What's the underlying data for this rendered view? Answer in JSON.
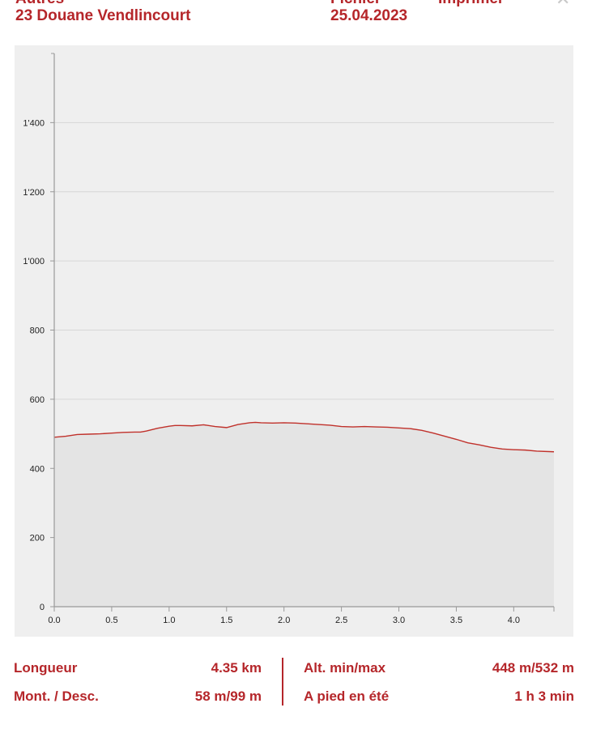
{
  "header": {
    "category": "Autres",
    "route_name": "23 Douane Vendlincourt",
    "file_label": "Fichier",
    "date": "25.04.2023",
    "print_label": "Imprimer",
    "close_symbol": "✕"
  },
  "chart_data": {
    "type": "area",
    "title": "",
    "xlabel": "",
    "ylabel": "",
    "xlim": [
      0,
      4.35
    ],
    "ylim": [
      0,
      1600
    ],
    "x_ticks": [
      0.0,
      0.5,
      1.0,
      1.5,
      2.0,
      2.5,
      3.0,
      3.5,
      4.0
    ],
    "x_tick_labels": [
      "0.0",
      "0.5",
      "1.0",
      "1.5",
      "2.0",
      "2.5",
      "3.0",
      "3.5",
      "4.0"
    ],
    "y_ticks": [
      0,
      200,
      400,
      600,
      800,
      1000,
      1200,
      1400
    ],
    "y_tick_labels": [
      "0",
      "200",
      "400",
      "600",
      "800",
      "1'000",
      "1'200",
      "1'400"
    ],
    "grid": true,
    "colors": {
      "line": "#c0312b",
      "fill": "#e4e4e4",
      "panel": "#efefef",
      "grid": "#d6d6d6",
      "axis": "#999999"
    },
    "x": [
      0,
      0.1,
      0.2,
      0.3,
      0.4,
      0.5,
      0.6,
      0.7,
      0.75,
      0.8,
      0.9,
      1.0,
      1.05,
      1.1,
      1.2,
      1.3,
      1.4,
      1.5,
      1.6,
      1.7,
      1.75,
      1.8,
      1.9,
      2.0,
      2.1,
      2.2,
      2.3,
      2.4,
      2.5,
      2.6,
      2.7,
      2.8,
      2.9,
      3.0,
      3.1,
      3.2,
      3.3,
      3.4,
      3.5,
      3.6,
      3.7,
      3.8,
      3.9,
      4.0,
      4.1,
      4.2,
      4.35
    ],
    "series": [
      {
        "values": [
          490,
          493,
          498,
          499,
          500,
          502,
          504,
          505,
          505,
          508,
          516,
          522,
          524,
          524,
          523,
          526,
          521,
          518,
          527,
          532,
          533,
          532,
          531,
          532,
          531,
          529,
          527,
          525,
          521,
          520,
          521,
          520,
          519,
          517,
          515,
          510,
          502,
          493,
          484,
          474,
          468,
          461,
          456,
          454,
          453,
          450,
          448
        ]
      }
    ]
  },
  "stats": {
    "length_label": "Longueur",
    "length_value": "4.35 km",
    "altitude_label": "Alt. min/max",
    "altitude_value": "448 m/532 m",
    "ascent_label": "Mont. / Desc.",
    "ascent_value": "58 m/99 m",
    "walking_label": "A pied en été",
    "walking_value": "1 h 3 min"
  }
}
